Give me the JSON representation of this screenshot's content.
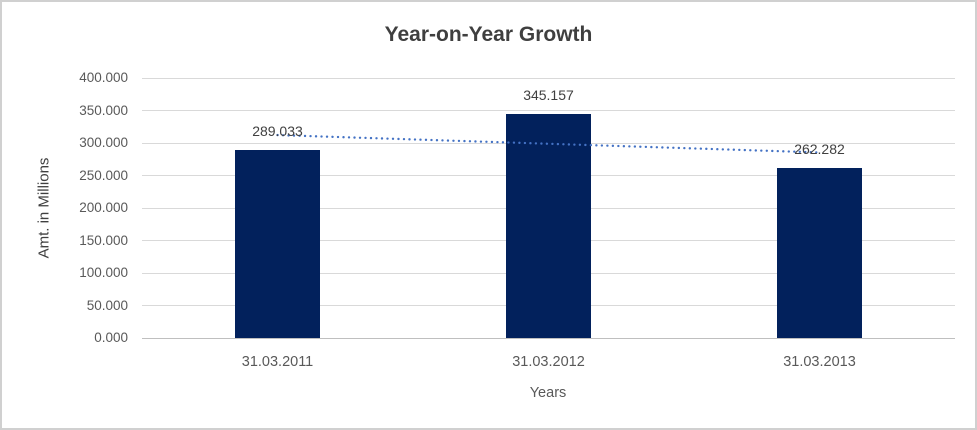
{
  "chart_data": {
    "type": "bar",
    "title": "Year-on-Year Growth",
    "xlabel": "Years",
    "ylabel": "Amt. in Millions",
    "categories": [
      "31.03.2011",
      "31.03.2012",
      "31.03.2013"
    ],
    "series": [
      {
        "name": "Amt. in Millions",
        "values": [
          289.033,
          345.157,
          262.282
        ]
      }
    ],
    "data_labels": [
      "289.033",
      "345.157",
      "262.282"
    ],
    "yticks": [
      {
        "value": 400,
        "label": "400.000"
      },
      {
        "value": 350,
        "label": "350.000"
      },
      {
        "value": 300,
        "label": "300.000"
      },
      {
        "value": 250,
        "label": "250.000"
      },
      {
        "value": 200,
        "label": "200.000"
      },
      {
        "value": 150,
        "label": "150.000"
      },
      {
        "value": 100,
        "label": "100.000"
      },
      {
        "value": 50,
        "label": "50.000"
      },
      {
        "value": 0,
        "label": "0.000"
      }
    ],
    "ylim": [
      0,
      400
    ],
    "grid": true,
    "legend": "none",
    "trendline": {
      "type": "linear",
      "style": "dotted-round"
    },
    "colors": {
      "bar": "#02215C",
      "trendline": "#4472C4",
      "gridline": "#D9D9D9",
      "axis_line": "#BFBFBF",
      "title_text": "#3F3F3F",
      "tick_text": "#595959",
      "data_label_text": "#404040",
      "frame_border": "#D0D0D0",
      "background": "#FFFFFF"
    }
  }
}
